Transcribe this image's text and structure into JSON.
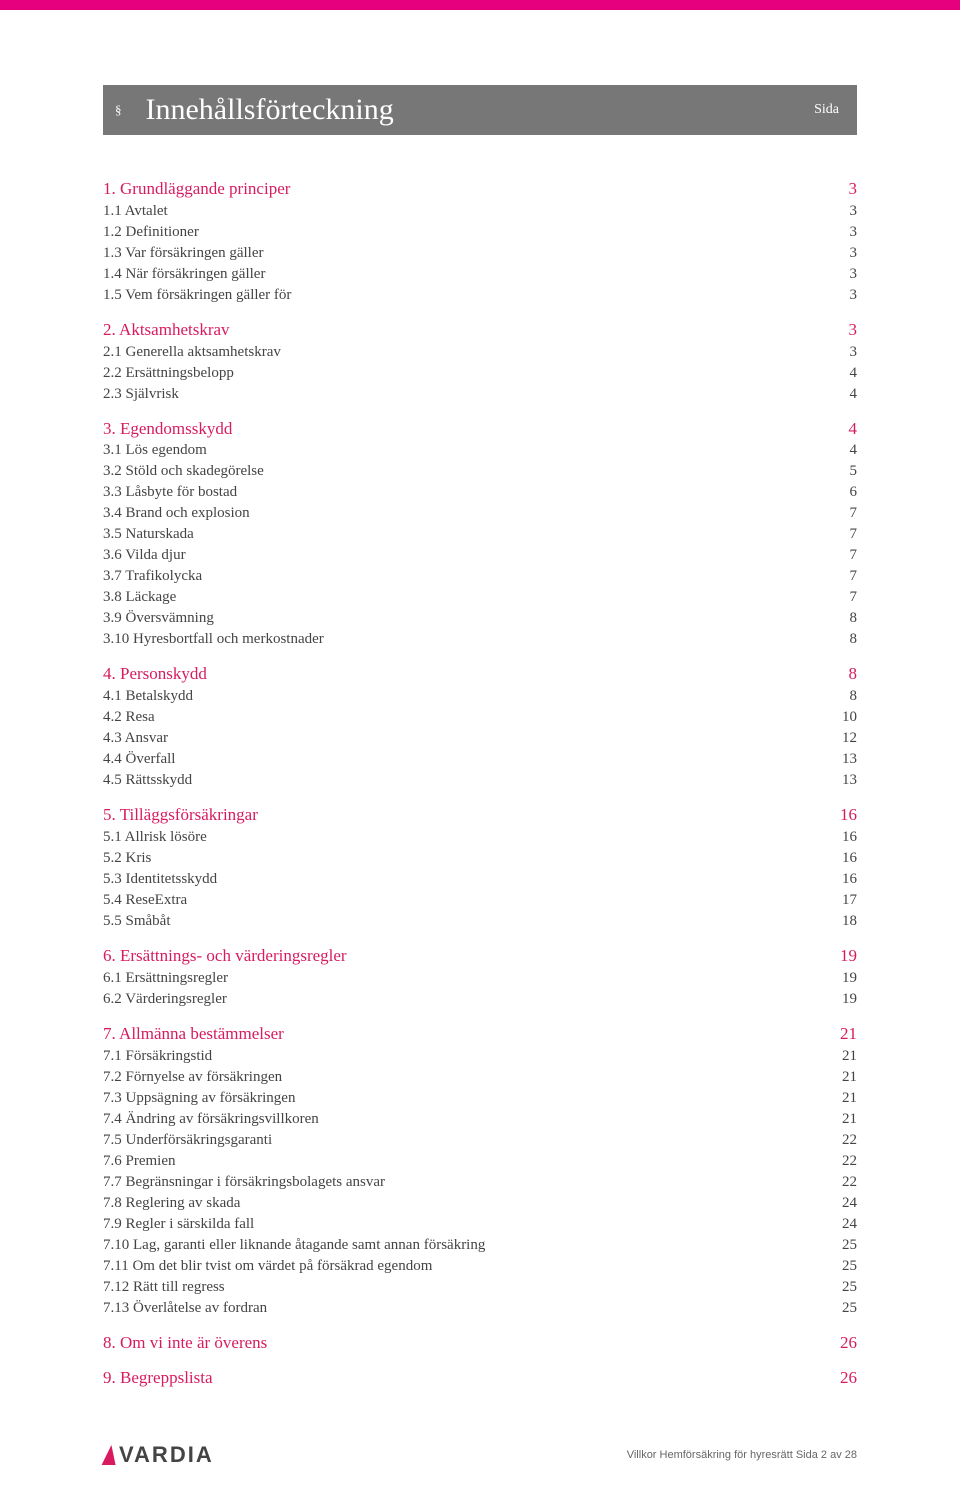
{
  "colors": {
    "accent": "#d81b60",
    "topbar": "#e6007e",
    "titlebar_bg": "#7a7a7a",
    "heading": "#d81b60",
    "body_text": "#444444",
    "footer_text": "#666666"
  },
  "header": {
    "section_mark": "§",
    "title": "Innehållsförteckning",
    "sida_label": "Sida"
  },
  "toc": [
    {
      "heading": {
        "label": "1. Grundläggande principer",
        "page": "3"
      },
      "items": [
        {
          "label": "1.1 Avtalet",
          "page": "3"
        },
        {
          "label": "1.2 Definitioner",
          "page": "3"
        },
        {
          "label": "1.3 Var försäkringen gäller",
          "page": "3"
        },
        {
          "label": "1.4 När försäkringen gäller",
          "page": "3"
        },
        {
          "label": "1.5 Vem försäkringen gäller för",
          "page": "3"
        }
      ]
    },
    {
      "heading": {
        "label": "2. Aktsamhetskrav",
        "page": "3"
      },
      "items": [
        {
          "label": "2.1 Generella aktsamhetskrav",
          "page": "3"
        },
        {
          "label": "2.2 Ersättningsbelopp",
          "page": "4"
        },
        {
          "label": "2.3 Självrisk",
          "page": "4"
        }
      ]
    },
    {
      "heading": {
        "label": "3. Egendomsskydd",
        "page": "4"
      },
      "items": [
        {
          "label": "3.1 Lös egendom",
          "page": "4"
        },
        {
          "label": "3.2 Stöld och skadegörelse",
          "page": "5"
        },
        {
          "label": "3.3 Låsbyte för bostad",
          "page": "6"
        },
        {
          "label": "3.4 Brand och explosion",
          "page": "7"
        },
        {
          "label": "3.5 Naturskada",
          "page": "7"
        },
        {
          "label": "3.6 Vilda djur",
          "page": "7"
        },
        {
          "label": "3.7 Trafikolycka",
          "page": "7"
        },
        {
          "label": "3.8 Läckage",
          "page": "7"
        },
        {
          "label": "3.9 Översvämning",
          "page": "8"
        },
        {
          "label": "3.10 Hyresbortfall och merkostnader",
          "page": "8"
        }
      ]
    },
    {
      "heading": {
        "label": "4. Personskydd",
        "page": "8"
      },
      "items": [
        {
          "label": "4.1 Betalskydd",
          "page": "8"
        },
        {
          "label": "4.2 Resa",
          "page": "10"
        },
        {
          "label": "4.3 Ansvar",
          "page": "12"
        },
        {
          "label": "4.4 Överfall",
          "page": "13"
        },
        {
          "label": "4.5 Rättsskydd",
          "page": "13"
        }
      ]
    },
    {
      "heading": {
        "label": "5. Tilläggsförsäkringar",
        "page": "16"
      },
      "items": [
        {
          "label": "5.1 Allrisk lösöre",
          "page": "16"
        },
        {
          "label": "5.2 Kris",
          "page": "16"
        },
        {
          "label": "5.3 Identitetsskydd",
          "page": "16"
        },
        {
          "label": "5.4 ReseExtra",
          "page": "17"
        },
        {
          "label": "5.5 Småbåt",
          "page": "18"
        }
      ]
    },
    {
      "heading": {
        "label": "6. Ersättnings- och värderingsregler",
        "page": "19"
      },
      "items": [
        {
          "label": "6.1 Ersättningsregler",
          "page": "19"
        },
        {
          "label": "6.2 Värderingsregler",
          "page": "19"
        }
      ]
    },
    {
      "heading": {
        "label": "7. Allmänna bestämmelser",
        "page": "21"
      },
      "items": [
        {
          "label": "7.1 Försäkringstid",
          "page": "21"
        },
        {
          "label": "7.2  Förnyelse av försäkringen",
          "page": "21"
        },
        {
          "label": "7.3 Uppsägning av försäkringen",
          "page": "21"
        },
        {
          "label": "7.4 Ändring av försäkringsvillkoren",
          "page": "21"
        },
        {
          "label": "7.5 Underförsäkringsgaranti",
          "page": "22"
        },
        {
          "label": "7.6 Premien",
          "page": "22"
        },
        {
          "label": "7.7 Begränsningar i försäkringsbolagets ansvar",
          "page": "22"
        },
        {
          "label": "7.8 Reglering av skada",
          "page": "24"
        },
        {
          "label": "7.9 Regler i särskilda fall",
          "page": "24"
        },
        {
          "label": "7.10 Lag, garanti eller liknande åtagande samt annan försäkring",
          "page": "25"
        },
        {
          "label": "7.11 Om det blir tvist om värdet på försäkrad egendom",
          "page": "25"
        },
        {
          "label": "7.12 Rätt till regress",
          "page": "25"
        },
        {
          "label": "7.13 Överlåtelse av fordran",
          "page": "25"
        }
      ]
    },
    {
      "heading": {
        "label": "8. Om vi inte är överens",
        "page": "26"
      },
      "items": []
    },
    {
      "heading": {
        "label": "9. Begreppslista",
        "page": "26"
      },
      "items": []
    }
  ],
  "footer": {
    "logo_text": "VARDIA",
    "text": "Villkor Hemförsäkring för hyresrätt Sida 2 av 28"
  }
}
